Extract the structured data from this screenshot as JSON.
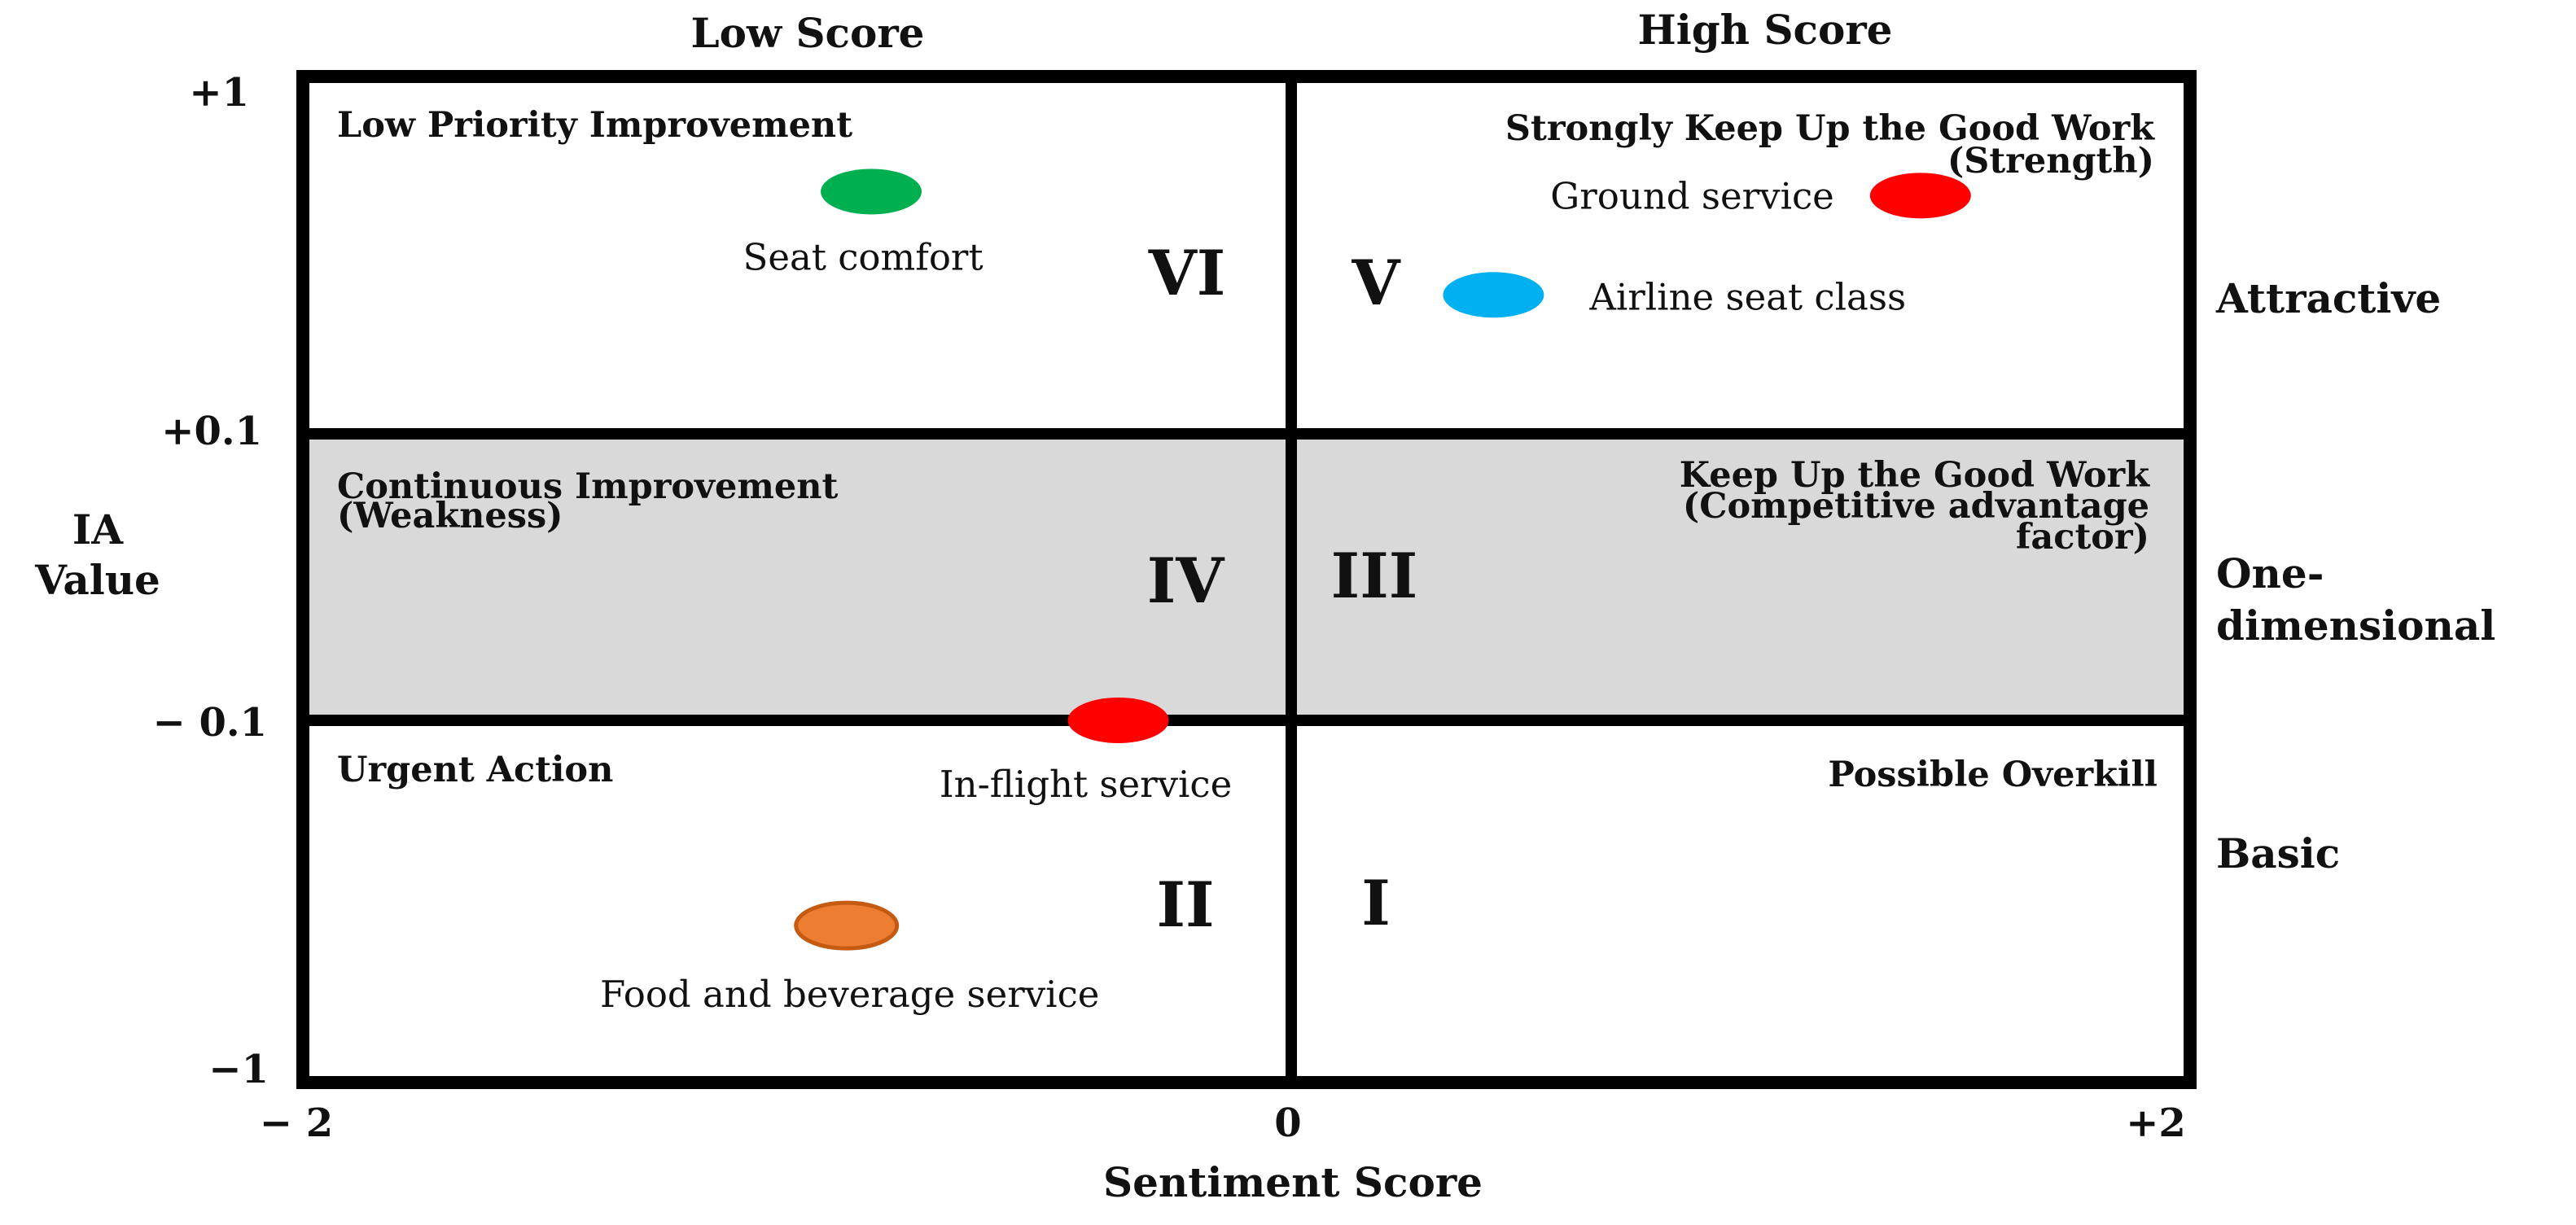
{
  "columns": {
    "low": "Low Score",
    "high": "High Score"
  },
  "axes": {
    "x_title": "Sentiment Score",
    "y_title_line1": "IA",
    "y_title_line2": "Value",
    "x_ticks": [
      "− 2",
      "0",
      "+2"
    ],
    "y_ticks": [
      "+1",
      "+0.1",
      "− 0.1",
      "−1"
    ]
  },
  "rows": {
    "attractive": "Attractive",
    "one_dim_line1": "One-",
    "one_dim_line2": "dimensional",
    "basic": "Basic"
  },
  "quadrants": {
    "q1": {
      "roman": "I",
      "title": "Possible Overkill"
    },
    "q2": {
      "roman": "II",
      "title": "Urgent Action"
    },
    "q3": {
      "roman": "III",
      "title_line1": "Keep Up the Good Work",
      "title_line2": "(Competitive advantage",
      "title_line3": "factor)"
    },
    "q4": {
      "roman": "IV",
      "title_line1": "Continuous Improvement",
      "title_line2": "(Weakness)"
    },
    "q5": {
      "roman": "V",
      "title_line1": "Strongly Keep Up the Good Work",
      "title_line2": "(Strength)"
    },
    "q6": {
      "roman": "VI",
      "title": "Low Priority Improvement"
    }
  },
  "points": [
    {
      "label": "Seat comfort",
      "sentiment": -0.85,
      "ia": 0.71,
      "color": "#00b050"
    },
    {
      "label": "Ground service",
      "sentiment": 1.4,
      "ia": 0.7,
      "color": "#ff0000"
    },
    {
      "label": "Airline seat class",
      "sentiment": 0.45,
      "ia": 0.45,
      "color": "#00b0f0"
    },
    {
      "label": "In-flight service",
      "sentiment": -0.35,
      "ia": -0.1,
      "color": "#ff0000"
    },
    {
      "label": "Food and beverage service",
      "sentiment": -0.9,
      "ia": -0.61,
      "color": "#ed7d31",
      "stroke": "#c55a11"
    }
  ],
  "colors": {
    "middle_band": "#d9d9d9",
    "frame": "#000000"
  }
}
